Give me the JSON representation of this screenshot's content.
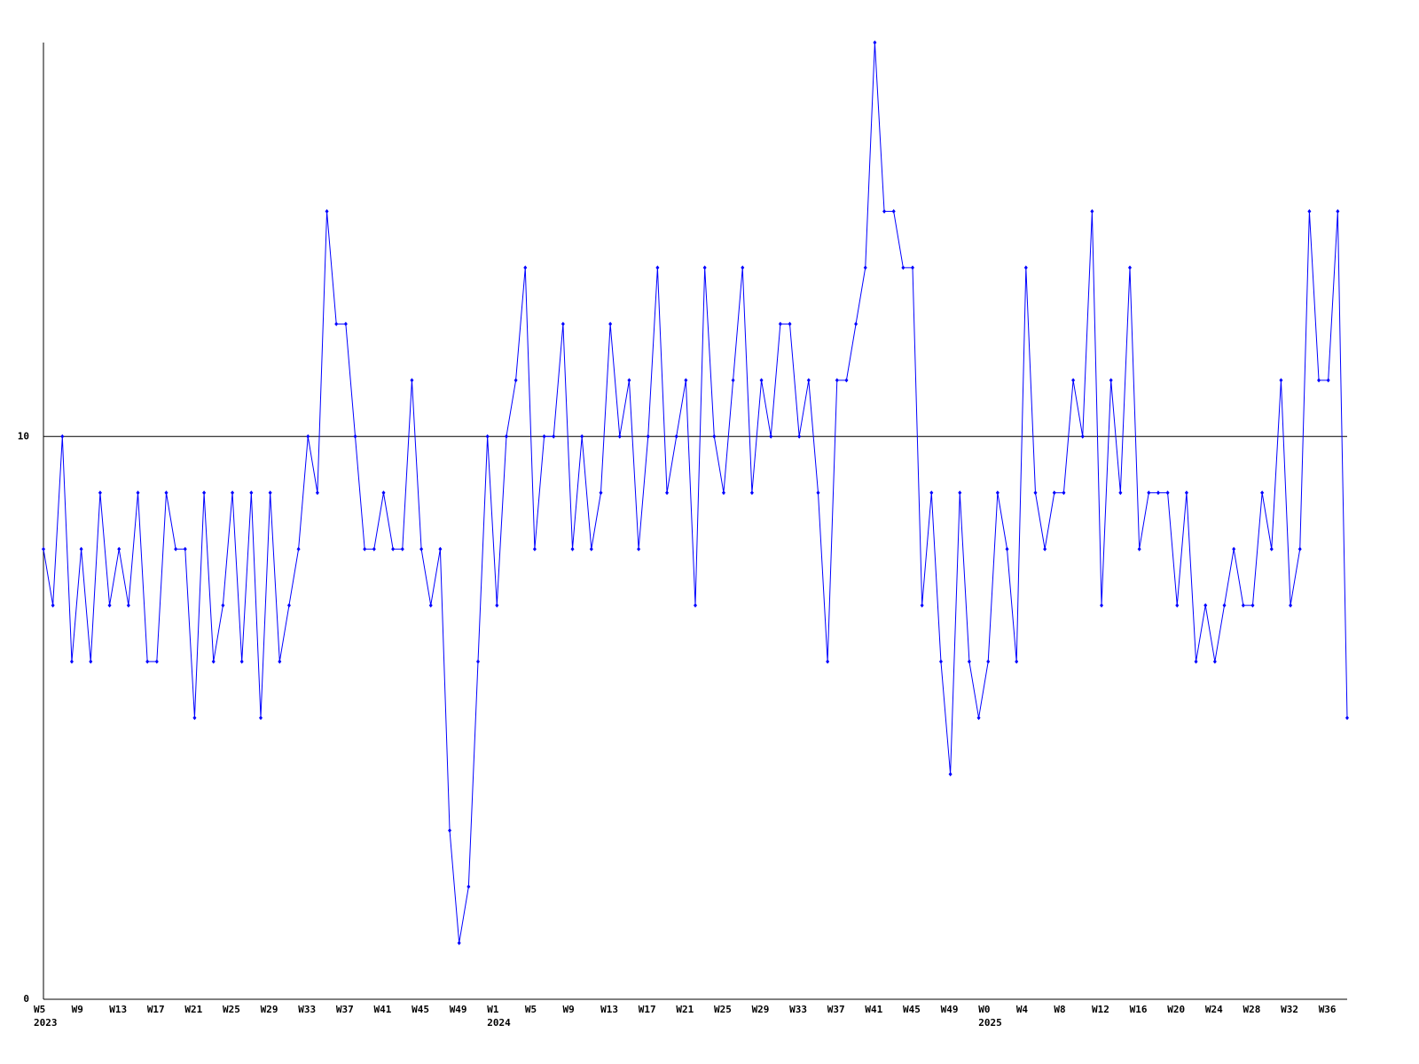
{
  "chart_data": {
    "type": "line",
    "categories": [
      "W5",
      null,
      null,
      null,
      "W9",
      null,
      null,
      null,
      "W13",
      null,
      null,
      null,
      "W17",
      null,
      null,
      null,
      "W21",
      null,
      null,
      null,
      "W25",
      null,
      null,
      null,
      "W29",
      null,
      null,
      null,
      "W33",
      null,
      null,
      null,
      "W37",
      null,
      null,
      null,
      "W41",
      null,
      null,
      null,
      "W45",
      null,
      null,
      null,
      "W49",
      null,
      null,
      null,
      "W1",
      null,
      null,
      null,
      "W5",
      null,
      null,
      null,
      "W9",
      null,
      null,
      null,
      "W13",
      null,
      null,
      null,
      "W17",
      null,
      null,
      null,
      "W21",
      null,
      null,
      null,
      "W25",
      null,
      null,
      null,
      "W29",
      null,
      null,
      null,
      "W33",
      null,
      null,
      null,
      "W37",
      null,
      null,
      null,
      "W41",
      null,
      null,
      null,
      "W45",
      null,
      null,
      null,
      "W49",
      null,
      null,
      null,
      "W0",
      null,
      null,
      null,
      "W4",
      null,
      null,
      null,
      "W8",
      null,
      null,
      null,
      "W12",
      null,
      null,
      null,
      "W16",
      null,
      null,
      null,
      "W20",
      null,
      null,
      null,
      "W24",
      null,
      null,
      null,
      "W28",
      null,
      null,
      null,
      "W32",
      null,
      null,
      null,
      "W36",
      null,
      null
    ],
    "category_years": [
      "2023",
      null,
      null,
      null,
      null,
      null,
      null,
      null,
      null,
      null,
      null,
      null,
      null,
      null,
      null,
      null,
      null,
      null,
      null,
      null,
      null,
      null,
      null,
      null,
      null,
      null,
      null,
      null,
      null,
      null,
      null,
      null,
      null,
      null,
      null,
      null,
      null,
      null,
      null,
      null,
      null,
      null,
      null,
      null,
      null,
      null,
      null,
      null,
      "2024",
      null,
      null,
      null,
      null,
      null,
      null,
      null,
      null,
      null,
      null,
      null,
      null,
      null,
      null,
      null,
      null,
      null,
      null,
      null,
      null,
      null,
      null,
      null,
      null,
      null,
      null,
      null,
      null,
      null,
      null,
      null,
      null,
      null,
      null,
      null,
      null,
      null,
      null,
      null,
      null,
      null,
      null,
      null,
      null,
      null,
      null,
      null,
      null,
      null,
      null,
      null,
      "2025",
      null,
      null,
      null,
      null,
      null,
      null,
      null,
      null,
      null,
      null,
      null,
      null,
      null,
      null,
      null,
      null,
      null,
      null,
      null,
      null,
      null,
      null,
      null,
      null,
      null,
      null,
      null,
      null,
      null,
      null,
      null,
      null,
      null,
      null,
      null,
      null,
      null,
      null
    ],
    "series": [
      {
        "color": "#0000ff",
        "values": [
          8,
          7,
          10,
          6,
          8,
          6,
          9,
          7,
          8,
          7,
          9,
          6,
          6,
          9,
          8,
          8,
          5,
          9,
          6,
          7,
          9,
          6,
          9,
          5,
          9,
          6,
          7,
          8,
          10,
          9,
          14,
          12,
          12,
          10,
          8,
          8,
          9,
          8,
          8,
          11,
          8,
          7,
          8,
          3,
          1,
          2,
          6,
          10,
          7,
          10,
          11,
          13,
          8,
          10,
          10,
          12,
          8,
          10,
          8,
          9,
          12,
          10,
          11,
          8,
          10,
          13,
          9,
          10,
          11,
          7,
          13,
          10,
          9,
          11,
          13,
          9,
          11,
          10,
          12,
          12,
          10,
          11,
          9,
          6,
          11,
          11,
          12,
          13,
          17,
          14,
          14,
          13,
          13,
          7,
          9,
          6,
          4,
          9,
          6,
          5,
          6,
          9,
          8,
          6,
          13,
          9,
          8,
          9,
          9,
          11,
          10,
          14,
          7,
          11,
          9,
          13,
          8,
          9,
          9,
          9,
          7,
          9,
          6,
          7,
          6,
          7,
          8,
          7,
          7,
          9,
          8,
          11,
          7,
          8,
          14,
          11,
          11,
          14,
          5
        ]
      }
    ],
    "ylim": [
      0,
      17
    ],
    "yticks": [
      0,
      10
    ],
    "grid": true
  }
}
